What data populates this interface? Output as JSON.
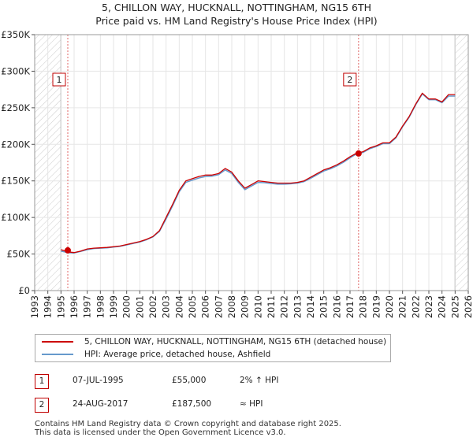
{
  "chart_data": {
    "type": "line",
    "title": "5, CHILLON WAY, HUCKNALL, NOTTINGHAM, NG15 6TH",
    "subtitle": "Price paid vs. HM Land Registry's House Price Index (HPI)",
    "xlabel": "",
    "ylabel": "",
    "xlim": [
      1993,
      2026
    ],
    "ylim": [
      0,
      350000
    ],
    "x_ticks": [
      1993,
      1994,
      1995,
      1996,
      1997,
      1998,
      1999,
      2000,
      2001,
      2002,
      2003,
      2004,
      2005,
      2006,
      2007,
      2008,
      2009,
      2010,
      2011,
      2012,
      2013,
      2014,
      2015,
      2016,
      2017,
      2018,
      2019,
      2020,
      2021,
      2022,
      2023,
      2024,
      2025,
      2026
    ],
    "y_ticks": [
      {
        "value": 0,
        "label": "£0"
      },
      {
        "value": 50000,
        "label": "£50K"
      },
      {
        "value": 100000,
        "label": "£100K"
      },
      {
        "value": 150000,
        "label": "£150K"
      },
      {
        "value": 200000,
        "label": "£200K"
      },
      {
        "value": 250000,
        "label": "£250K"
      },
      {
        "value": 300000,
        "label": "£300K"
      },
      {
        "value": 350000,
        "label": "£350K"
      }
    ],
    "grid": true,
    "hatched_ranges": [
      [
        1993,
        1995.0
      ],
      [
        2025.0,
        2026
      ]
    ],
    "series": [
      {
        "name": "5, CHILLON WAY, HUCKNALL, NOTTINGHAM, NG15 6TH (detached house)",
        "color": "#cc0000",
        "x": [
          1995.0,
          1995.5,
          1996,
          1996.5,
          1997,
          1997.5,
          1998,
          1998.5,
          1999,
          1999.5,
          2000,
          2000.5,
          2001,
          2001.5,
          2002,
          2002.5,
          2003,
          2003.5,
          2004,
          2004.5,
          2005,
          2005.5,
          2006,
          2006.5,
          2007,
          2007.5,
          2008,
          2008.5,
          2009,
          2009.5,
          2010,
          2010.5,
          2011,
          2011.5,
          2012,
          2012.5,
          2013,
          2013.5,
          2014,
          2014.5,
          2015,
          2015.5,
          2016,
          2016.5,
          2017,
          2017.5,
          2018,
          2018.5,
          2019,
          2019.5,
          2020,
          2020.5,
          2021,
          2021.5,
          2022,
          2022.5,
          2023,
          2023.5,
          2024,
          2024.5,
          2025.0
        ],
        "y": [
          56000,
          53000,
          52000,
          54000,
          57000,
          58000,
          58500,
          59000,
          60000,
          61000,
          63000,
          65000,
          67000,
          70000,
          74000,
          82000,
          100000,
          118000,
          137000,
          150000,
          153000,
          156000,
          158000,
          158000,
          160000,
          167000,
          162000,
          150000,
          140000,
          145000,
          150000,
          149000,
          148000,
          147000,
          147000,
          147000,
          148000,
          150000,
          155000,
          160000,
          165000,
          168000,
          172000,
          177000,
          183000,
          188000,
          190000,
          195000,
          198000,
          202000,
          202000,
          210000,
          225000,
          238000,
          255000,
          270000,
          262000,
          262000,
          258000,
          268000,
          268000
        ]
      },
      {
        "name": "HPI: Average price, detached house, Ashfield",
        "color": "#6699cc",
        "x": [
          1995.0,
          1995.5,
          1996,
          1996.5,
          1997,
          1997.5,
          1998,
          1998.5,
          1999,
          1999.5,
          2000,
          2000.5,
          2001,
          2001.5,
          2002,
          2002.5,
          2003,
          2003.5,
          2004,
          2004.5,
          2005,
          2005.5,
          2006,
          2006.5,
          2007,
          2007.5,
          2008,
          2008.5,
          2009,
          2009.5,
          2010,
          2010.5,
          2011,
          2011.5,
          2012,
          2012.5,
          2013,
          2013.5,
          2014,
          2014.5,
          2015,
          2015.5,
          2016,
          2016.5,
          2017,
          2017.5,
          2018,
          2018.5,
          2019,
          2019.5,
          2020,
          2020.5,
          2021,
          2021.5,
          2022,
          2022.5,
          2023,
          2023.5,
          2024,
          2024.5,
          2025.0
        ],
        "y": [
          54000,
          52000,
          51500,
          53500,
          56000,
          57500,
          58000,
          58500,
          59500,
          60500,
          62500,
          64500,
          66500,
          69500,
          73500,
          81000,
          98000,
          116000,
          135000,
          148000,
          151000,
          154000,
          156000,
          156500,
          158500,
          165000,
          160000,
          148000,
          138000,
          143000,
          148000,
          147500,
          146500,
          145500,
          145500,
          146000,
          147000,
          149000,
          153500,
          158500,
          163500,
          166500,
          170500,
          175500,
          181500,
          187000,
          189000,
          194000,
          197000,
          201000,
          201000,
          209000,
          224000,
          237000,
          254000,
          269000,
          261000,
          261000,
          257000,
          266000,
          266000
        ]
      }
    ],
    "sales": [
      {
        "label": "1",
        "x": 1995.52,
        "price": 55000
      },
      {
        "label": "2",
        "x": 2017.65,
        "price": 187500
      }
    ]
  },
  "legend": {
    "items": [
      {
        "label": "5, CHILLON WAY, HUCKNALL, NOTTINGHAM, NG15 6TH (detached house)",
        "color": "#cc0000"
      },
      {
        "label": "HPI: Average price, detached house, Ashfield",
        "color": "#6699cc"
      }
    ]
  },
  "sales_table": [
    {
      "num": "1",
      "date": "07-JUL-1995",
      "price": "£55,000",
      "hpi": "2% ↑ HPI"
    },
    {
      "num": "2",
      "date": "24-AUG-2017",
      "price": "£187,500",
      "hpi": "≈ HPI"
    }
  ],
  "footer": {
    "line1": "Contains HM Land Registry data © Crown copyright and database right 2025.",
    "line2": "This data is licensed under the Open Government Licence v3.0."
  }
}
